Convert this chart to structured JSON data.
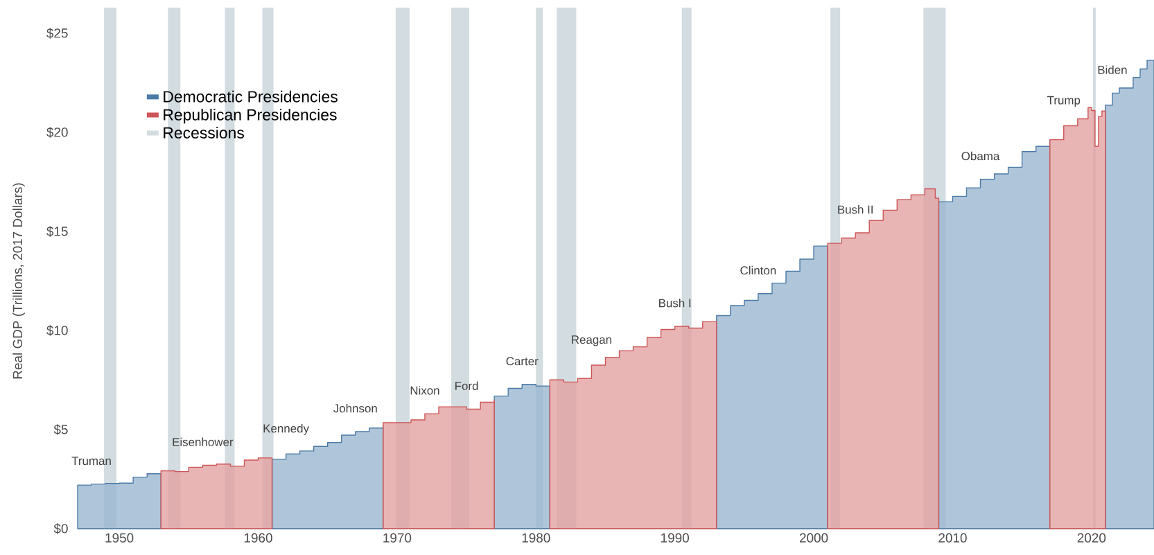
{
  "chart_data": {
    "type": "area",
    "ylabel": "Real GDP (Trillions, 2017 Dollars)",
    "xlim": [
      1947,
      2024.5
    ],
    "ylim": [
      0,
      25
    ],
    "xticks": [
      1950,
      1960,
      1970,
      1980,
      1990,
      2000,
      2010,
      2020
    ],
    "yticks": [
      {
        "value": 0,
        "label": "$0"
      },
      {
        "value": 5,
        "label": "$5"
      },
      {
        "value": 10,
        "label": "$10"
      },
      {
        "value": 15,
        "label": "$15"
      },
      {
        "value": 20,
        "label": "$20"
      },
      {
        "value": 25,
        "label": "$25"
      }
    ],
    "grid": false,
    "legend": "top left",
    "series": [
      {
        "name": "Democratic Presidencies",
        "color": "#4a7aa7",
        "x": [
          1947,
          1948,
          1949,
          1950,
          1951,
          1952,
          1953,
          1953.01,
          1961,
          1962,
          1963,
          1964,
          1965,
          1966,
          1967,
          1968,
          1969,
          1969.01,
          1977,
          1978,
          1979,
          1980,
          1981,
          1981.01,
          1993,
          1994,
          1995,
          1996,
          1997,
          1998,
          1999,
          2000,
          2001,
          2001.01,
          2009,
          2010,
          2011,
          2012,
          2013,
          2014,
          2015,
          2016,
          2017,
          2017.01,
          2021,
          2021.5,
          2022,
          2022.5,
          2023,
          2023.5,
          2024,
          2024.5
        ],
        "values": [
          2.2,
          2.25,
          2.28,
          2.3,
          2.6,
          2.77,
          2.77,
          null,
          3.5,
          3.77,
          3.92,
          4.15,
          4.35,
          4.72,
          4.9,
          5.08,
          5.23,
          null,
          6.69,
          7.08,
          7.28,
          7.2,
          7.2,
          null,
          10.75,
          11.26,
          11.52,
          11.86,
          12.39,
          12.99,
          13.6,
          14.26,
          14.26,
          null,
          16.5,
          16.77,
          17.2,
          17.63,
          17.9,
          18.24,
          19.03,
          19.29,
          19.63,
          null,
          21.37,
          21.98,
          22.24,
          22.24,
          22.77,
          23.2,
          23.63,
          23.63
        ]
      },
      {
        "name": "Republican Presidencies",
        "color": "#cc5555",
        "x": [
          1953,
          1954,
          1955,
          1956,
          1957,
          1958,
          1959,
          1960,
          1961,
          1961.01,
          1969,
          1970,
          1971,
          1972,
          1973,
          1974,
          1975,
          1976,
          1977,
          1977.01,
          1981,
          1982,
          1983,
          1984,
          1985,
          1986,
          1987,
          1988,
          1989,
          1990,
          1991,
          1992,
          1993,
          1993.01,
          2001,
          2002,
          2003,
          2004,
          2005,
          2006,
          2007,
          2008,
          2008.75,
          2009,
          2009.01,
          2017,
          2018,
          2019,
          2019.75,
          2020,
          2020.25,
          2020.5,
          2020.75,
          2021
        ],
        "values": [
          2.92,
          2.88,
          3.1,
          3.2,
          3.26,
          3.15,
          3.46,
          3.57,
          3.57,
          null,
          5.35,
          5.35,
          5.49,
          5.8,
          6.15,
          6.15,
          6.03,
          6.38,
          6.5,
          null,
          7.51,
          7.4,
          7.58,
          8.25,
          8.65,
          8.98,
          9.18,
          9.65,
          10.05,
          10.21,
          10.12,
          10.45,
          10.45,
          null,
          14.4,
          14.67,
          14.93,
          15.55,
          16.07,
          16.6,
          16.85,
          17.15,
          16.68,
          16.68,
          null,
          19.63,
          20.33,
          20.68,
          21.25,
          21.1,
          19.29,
          20.8,
          21.08,
          21.08
        ]
      }
    ],
    "bands": [
      {
        "axis": "x",
        "from": 1948.9,
        "to": 1949.8,
        "label": "Recessions",
        "color": "#d3dce1"
      },
      {
        "axis": "x",
        "from": 1953.5,
        "to": 1954.4,
        "color": "#d3dce1"
      },
      {
        "axis": "x",
        "from": 1957.6,
        "to": 1958.3,
        "color": "#d3dce1"
      },
      {
        "axis": "x",
        "from": 1960.3,
        "to": 1961.1,
        "color": "#d3dce1"
      },
      {
        "axis": "x",
        "from": 1969.9,
        "to": 1970.9,
        "color": "#d3dce1"
      },
      {
        "axis": "x",
        "from": 1973.9,
        "to": 1975.2,
        "color": "#d3dce1"
      },
      {
        "axis": "x",
        "from": 1980.0,
        "to": 1980.5,
        "color": "#d3dce1"
      },
      {
        "axis": "x",
        "from": 1981.5,
        "to": 1982.9,
        "color": "#d3dce1"
      },
      {
        "axis": "x",
        "from": 1990.5,
        "to": 1991.2,
        "color": "#d3dce1"
      },
      {
        "axis": "x",
        "from": 2001.2,
        "to": 2001.9,
        "color": "#d3dce1"
      },
      {
        "axis": "x",
        "from": 2007.9,
        "to": 2009.5,
        "color": "#d3dce1"
      },
      {
        "axis": "x",
        "from": 2020.1,
        "to": 2020.3,
        "color": "#d3dce1"
      }
    ],
    "annotations": [
      {
        "text": "Truman",
        "x": 1948,
        "y": 2.25
      },
      {
        "text": "Eisenhower",
        "x": 1956,
        "y": 3.2
      },
      {
        "text": "Kennedy",
        "x": 1962,
        "y": 3.77
      },
      {
        "text": "Johnson",
        "x": 1967,
        "y": 4.9
      },
      {
        "text": "Nixon",
        "x": 1972,
        "y": 5.8
      },
      {
        "text": "Ford",
        "x": 1975,
        "y": 6.03
      },
      {
        "text": "Carter",
        "x": 1979,
        "y": 7.28
      },
      {
        "text": "Reagan",
        "x": 1984,
        "y": 8.25
      },
      {
        "text": "Bush I",
        "x": 1990,
        "y": 10.21
      },
      {
        "text": "Clinton",
        "x": 1996,
        "y": 11.86
      },
      {
        "text": "Bush II",
        "x": 2003,
        "y": 14.93
      },
      {
        "text": "Obama",
        "x": 2012,
        "y": 17.63
      },
      {
        "text": "Trump",
        "x": 2018,
        "y": 20.33
      },
      {
        "text": "Biden",
        "x": 2021.5,
        "y": 21.98
      }
    ]
  }
}
